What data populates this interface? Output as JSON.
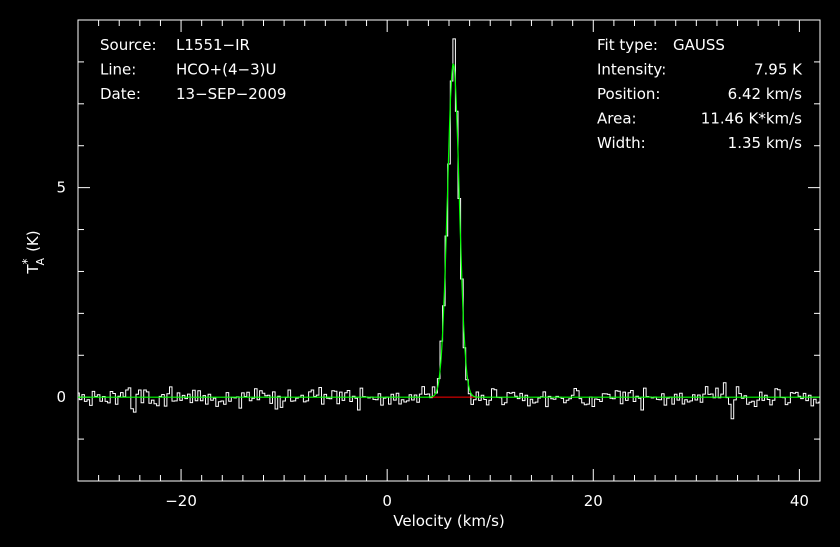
{
  "chart_data": {
    "type": "line",
    "title": "",
    "xlabel": "Velocity (km/s)",
    "ylabel": "T",
    "ylabel_sub": "A",
    "ylabel_sup": "*",
    "ylabel_unit": "(K)",
    "xlim": [
      -30,
      42
    ],
    "ylim": [
      -2,
      9
    ],
    "x_ticks": [
      -20,
      0,
      20,
      40
    ],
    "x_tick_labels": [
      "−20",
      "0",
      "20",
      "40"
    ],
    "y_ticks": [
      0,
      5
    ],
    "y_tick_labels": [
      "0",
      "5"
    ],
    "grid": false,
    "legend": "none",
    "info_left": [
      {
        "key": "Source:",
        "value": "L1551−IR"
      },
      {
        "key": "Line:",
        "value": "HCO+(4−3)U"
      },
      {
        "key": "Date:",
        "value": "13−SEP−2009"
      }
    ],
    "info_right": [
      {
        "key": "Fit type:",
        "value": "GAUSS"
      },
      {
        "key": "Intensity:",
        "value": "7.95 K"
      },
      {
        "key": "Position:",
        "value": "6.42 km/s"
      },
      {
        "key": "Area:",
        "value": "11.46 K*km/s"
      },
      {
        "key": "Width:",
        "value": "1.35 km/s"
      }
    ],
    "fit": {
      "amplitude": 7.95,
      "center": 6.42,
      "fwhm": 1.35,
      "color": "#00ff00"
    },
    "baseline": {
      "value": 0,
      "x_range": [
        4.2,
        8.8
      ],
      "color": "#ff0000"
    },
    "spectrum": {
      "color": "#ffffff",
      "noise_rms": 0.13,
      "x_start": -30,
      "x_end": 42,
      "channel_width": 0.25
    }
  },
  "colors": {
    "background": "#000000",
    "axes": "#ffffff",
    "spectrum": "#ffffff",
    "fit": "#00ff00",
    "baseline": "#ff0000"
  }
}
